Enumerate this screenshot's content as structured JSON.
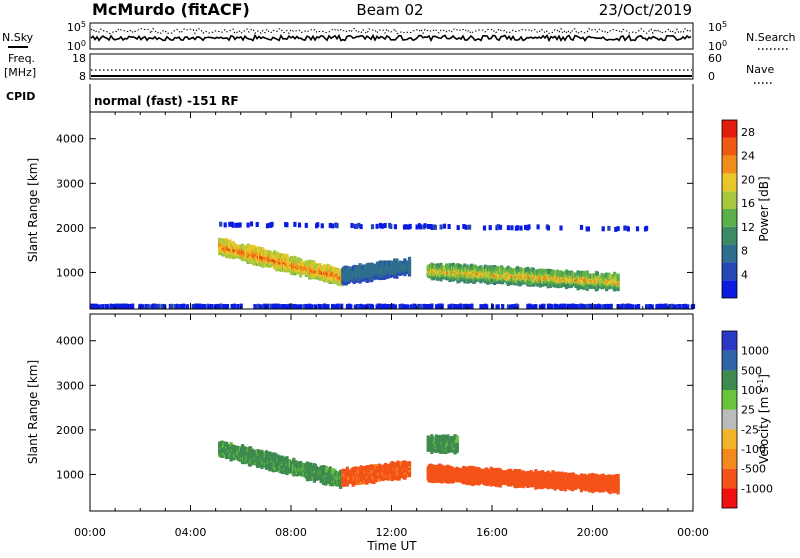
{
  "header": {
    "station": "McMurdo (fitACF)",
    "beam": "Beam 02",
    "date": "23/Oct/2019"
  },
  "noise_panel": {
    "left_label": "N.Sky",
    "left_ticks": [
      "10^5",
      "10^0"
    ],
    "right_label": "N.Search",
    "right_ticks": [
      "10^5",
      "10^0"
    ],
    "legend_line": "dotted"
  },
  "freq_panel": {
    "left_label_lines": [
      "Freq.",
      "[MHz]"
    ],
    "left_ticks": [
      "18",
      "8"
    ],
    "right_label": "Nave",
    "right_ticks": [
      "60",
      "0"
    ],
    "legend_line": "dotted"
  },
  "cpid_panel": {
    "label": "CPID",
    "text": "normal (fast) -151 RF"
  },
  "x_axis": {
    "label": "Time UT",
    "ticks": [
      "00:00",
      "04:00",
      "08:00",
      "12:00",
      "16:00",
      "20:00",
      "00:00"
    ]
  },
  "colors": {
    "power_scale": [
      "#0a1ce0",
      "#2647b8",
      "#2f6e8e",
      "#3b8a63",
      "#5bb04a",
      "#a7c83c",
      "#e9c62a",
      "#f18e1a",
      "#ee5a12",
      "#e31d0e"
    ],
    "velocity_scale": [
      "#f01010",
      "#f35218",
      "#f48a1e",
      "#f4b429",
      "#bbbbbb",
      "#69c43d",
      "#3f8a4e",
      "#2f64a6",
      "#2a38c4"
    ]
  },
  "chart_data": [
    {
      "type": "heatmap",
      "title": "",
      "xlabel": "Time UT",
      "ylabel": "Slant Range [km]",
      "xlim_hours": [
        0,
        24
      ],
      "ylim": [
        180,
        4600
      ],
      "y_ticks": [
        1000,
        2000,
        3000,
        4000
      ],
      "x_ticks": [
        "00:00",
        "04:00",
        "08:00",
        "12:00",
        "16:00",
        "20:00",
        "00:00"
      ],
      "colorbar": {
        "label": "Power [dB]",
        "tick_labels": [
          "4",
          "8",
          "12",
          "16",
          "20",
          "24",
          "28"
        ],
        "range": [
          0,
          30
        ]
      },
      "features": [
        {
          "name": "band 05-10 UT",
          "start_hour": 5.1,
          "end_hour": 10.0,
          "range_start_km": 1600,
          "range_end_km": 900,
          "typical_power_db": 18,
          "peak_power_db": 27
        },
        {
          "name": "band 10-12.7 UT",
          "start_hour": 10.0,
          "end_hour": 12.7,
          "range_start_km": 950,
          "range_end_km": 1150,
          "typical_power_db": 9
        },
        {
          "name": "band 13.4-21 UT",
          "start_hour": 13.4,
          "end_hour": 21.0,
          "range_start_km": 1050,
          "range_end_km": 800,
          "typical_power_db": 12,
          "peak_power_db": 24
        },
        {
          "name": "upper echoes",
          "start_hour": 5.0,
          "end_hour": 22.5,
          "range_start_km": 2100,
          "range_end_km": 2000,
          "typical_power_db": 5
        },
        {
          "name": "near-range ground scatter",
          "start_hour": 0.0,
          "end_hour": 24.0,
          "range_start_km": 250,
          "range_end_km": 250,
          "typical_power_db": 5
        }
      ]
    },
    {
      "type": "heatmap",
      "title": "",
      "xlabel": "Time UT",
      "ylabel": "Slant Range [km]",
      "xlim_hours": [
        0,
        24
      ],
      "ylim": [
        180,
        4600
      ],
      "y_ticks": [
        1000,
        2000,
        3000,
        4000
      ],
      "x_ticks": [
        "00:00",
        "04:00",
        "08:00",
        "12:00",
        "16:00",
        "20:00",
        "00:00"
      ],
      "colorbar": {
        "label": "Velocity [m s^-1]",
        "tick_labels": [
          "1000",
          "500",
          "100",
          "25",
          "-25",
          "-100",
          "-500",
          "-1000"
        ]
      },
      "features": [
        {
          "name": "band 05-10 UT",
          "start_hour": 5.1,
          "end_hour": 10.0,
          "range_start_km": 1600,
          "range_end_km": 900,
          "typical_velocity": 150
        },
        {
          "name": "band 10-12.7 UT",
          "start_hour": 10.0,
          "end_hour": 12.7,
          "range_start_km": 950,
          "range_end_km": 1150,
          "typical_velocity": -150
        },
        {
          "name": "band 13.4-21 UT",
          "start_hour": 13.4,
          "end_hour": 21.0,
          "range_start_km": 1050,
          "range_end_km": 800,
          "typical_velocity": -200
        },
        {
          "name": "echoes 13.5-14.5 UT",
          "start_hour": 13.4,
          "end_hour": 14.6,
          "range_start_km": 1700,
          "range_end_km": 1700,
          "typical_velocity": 150
        }
      ]
    }
  ]
}
